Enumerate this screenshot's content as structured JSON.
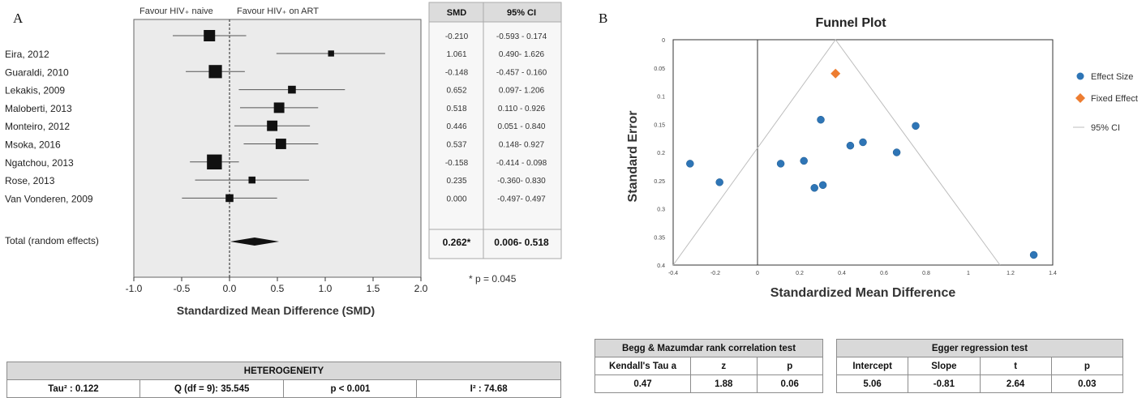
{
  "panels": {
    "a": "A",
    "b": "B"
  },
  "forest": {
    "header_left": "Favour HIV₊ naive",
    "header_right": "Favour HIV₊ on ART",
    "col_smd": "SMD",
    "col_ci": "95% CI",
    "total_label": "Total (random effects)",
    "total_smd": "0.262*",
    "total_ci": "0.006- 0.518",
    "pvalue_note": "* p = 0.045",
    "xlabel": "Standardized Mean Difference (SMD)"
  },
  "heterogeneity": {
    "title": "HETEROGENEITY",
    "tau2": "Tau² : 0.122",
    "q": "Q (df = 9): 35.545",
    "p": "p < 0.001",
    "i2": "I² : 74.68"
  },
  "funnel": {
    "title": "Funnel Plot",
    "xlabel": "Standardized Mean Difference",
    "ylabel": "Standard Error",
    "legend": [
      "Effect Size",
      "Fixed Effect",
      "95% CI"
    ]
  },
  "begg": {
    "title": "Begg & Mazumdar rank correlation test",
    "headers": [
      "Kendall's Tau a",
      "z",
      "p"
    ],
    "values": [
      "0.47",
      "1.88",
      "0.06"
    ]
  },
  "egger": {
    "title": "Egger regression test",
    "headers": [
      "Intercept",
      "Slope",
      "t",
      "p"
    ],
    "values": [
      "5.06",
      "-0.81",
      "2.64",
      "0.03"
    ]
  },
  "chart_data": [
    {
      "type": "forest",
      "studies": [
        "Eira, 2012",
        "Guaraldi, 2010",
        "Lekakis, 2009",
        "Maloberti, 2013",
        "Monteiro, 2012",
        "Msoka, 2016",
        "Ngatchou, 2013",
        "Rose, 2013",
        "Van Vonderen, 2009"
      ],
      "first_row_smd": "-0.210",
      "first_row_ci": "-0.593 - 0.174",
      "first_row_estimate": -0.21,
      "first_row_lower": -0.593,
      "first_row_upper": 0.174,
      "first_row_weight": 5,
      "smd_text": [
        "1.061",
        "-0.148",
        "0.652",
        "0.518",
        "0.446",
        "0.537",
        "-0.158",
        "0.235",
        "0.000"
      ],
      "ci_text": [
        "0.490- 1.626",
        "-0.457 - 0.160",
        "0.097- 1.206",
        "0.110 - 0.926",
        "0.051 - 0.840",
        "0.148- 0.927",
        "-0.414 - 0.098",
        "-0.360- 0.830",
        "-0.497- 0.497"
      ],
      "estimates": [
        1.061,
        -0.148,
        0.652,
        0.518,
        0.446,
        0.537,
        -0.158,
        0.235,
        0.0
      ],
      "lower": [
        0.49,
        -0.457,
        0.097,
        0.11,
        0.051,
        0.148,
        -0.414,
        -0.36,
        -0.497
      ],
      "upper": [
        1.626,
        0.16,
        1.206,
        0.926,
        0.84,
        0.927,
        0.098,
        0.83,
        0.497
      ],
      "weights": [
        2,
        6,
        3,
        4.5,
        4.5,
        4.5,
        7,
        2.5,
        3
      ],
      "pooled": {
        "estimate": 0.262,
        "lower": 0.006,
        "upper": 0.518
      },
      "xlim": [
        -1.0,
        2.0
      ],
      "xticks": [
        "-1.0",
        "-0.5",
        "0.0",
        "0.5",
        "1.0",
        "1.5",
        "2.0"
      ]
    },
    {
      "type": "scatter",
      "x_range": [
        -0.4,
        1.4
      ],
      "y_range": [
        0,
        0.4
      ],
      "y_reversed": true,
      "xticks": [
        "-0.4",
        "-0.2",
        "0",
        "0.2",
        "0.4",
        "0.6",
        "0.8",
        "1",
        "1.2",
        "1.4"
      ],
      "yticks": [
        "0",
        "0.05",
        "0.1",
        "0.15",
        "0.2",
        "0.25",
        "0.3",
        "0.35",
        "0.4"
      ],
      "effect_size": [
        {
          "x": -0.32,
          "y": 0.22
        },
        {
          "x": -0.18,
          "y": 0.253
        },
        {
          "x": 0.11,
          "y": 0.22
        },
        {
          "x": 0.22,
          "y": 0.215
        },
        {
          "x": 0.3,
          "y": 0.142
        },
        {
          "x": 0.27,
          "y": 0.263
        },
        {
          "x": 0.31,
          "y": 0.258
        },
        {
          "x": 0.44,
          "y": 0.188
        },
        {
          "x": 0.5,
          "y": 0.182
        },
        {
          "x": 0.66,
          "y": 0.2
        },
        {
          "x": 0.75,
          "y": 0.153
        },
        {
          "x": 1.31,
          "y": 0.382
        }
      ],
      "fixed_effect": {
        "x": 0.37,
        "y": 0.06
      },
      "ci_apex_x": 0.37,
      "ci_base": [
        -0.4,
        1.15
      ],
      "colors": {
        "effect": "#2e75b6",
        "fixed": "#ed7d31",
        "ci": "#bdbdbd"
      }
    }
  ]
}
